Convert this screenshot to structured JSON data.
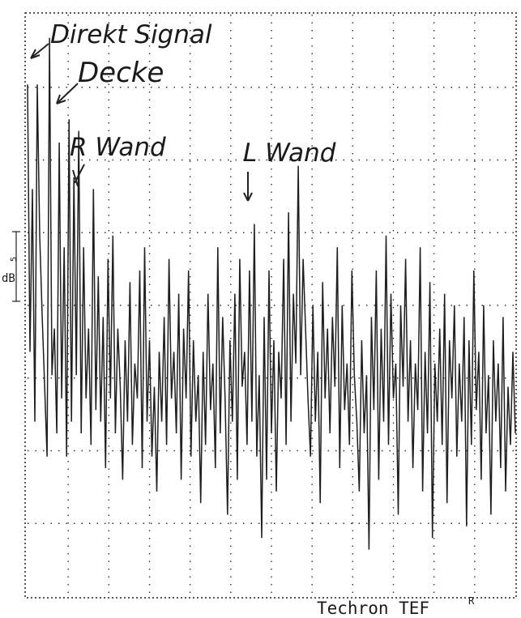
{
  "chart_data": {
    "type": "line",
    "title": "",
    "xlabel": "",
    "ylabel": "dB",
    "grid": true,
    "legend": "none",
    "brand_label": "Techron TEF",
    "brand_superscript": "R",
    "scale_marker": {
      "label": "dB",
      "value_label": "5"
    },
    "xlim": [
      0,
      100
    ],
    "ylim": [
      0,
      100
    ],
    "series": [
      {
        "values": [
          88,
          42,
          70,
          30,
          88,
          62,
          48,
          36,
          24,
          96,
          38,
          46,
          28,
          78,
          34,
          60,
          24,
          82,
          30,
          72,
          38,
          80,
          28,
          60,
          34,
          46,
          26,
          70,
          32,
          55,
          30,
          48,
          22,
          58,
          34,
          62,
          28,
          46,
          36,
          20,
          44,
          30,
          54,
          26,
          40,
          34,
          56,
          22,
          60,
          30,
          44,
          24,
          36,
          18,
          42,
          30,
          48,
          26,
          58,
          34,
          42,
          28,
          52,
          20,
          46,
          34,
          56,
          24,
          44,
          30,
          38,
          16,
          42,
          26,
          52,
          32,
          40,
          22,
          60,
          28,
          48,
          34,
          14,
          44,
          30,
          52,
          20,
          58,
          36,
          42,
          26,
          56,
          30,
          64,
          24,
          38,
          10,
          48,
          20,
          56,
          28,
          44,
          18,
          42,
          34,
          58,
          26,
          66,
          30,
          52,
          40,
          74,
          38,
          58,
          46,
          34,
          24,
          50,
          30,
          42,
          16,
          54,
          34,
          46,
          28,
          48,
          36,
          60,
          22,
          50,
          32,
          40,
          26,
          56,
          38,
          30,
          18,
          44,
          28,
          38,
          8,
          48,
          32,
          56,
          20,
          46,
          30,
          62,
          26,
          52,
          34,
          40,
          14,
          50,
          36,
          58,
          30,
          44,
          22,
          40,
          32,
          60,
          18,
          42,
          28,
          54,
          10,
          40,
          30,
          46,
          26,
          52,
          16,
          44,
          34,
          50,
          24,
          40,
          30,
          48,
          12,
          44,
          26,
          56,
          32,
          42,
          20,
          50,
          28,
          38,
          14,
          44,
          30,
          40,
          22,
          48,
          18,
          36,
          26,
          42,
          28
        ]
      }
    ],
    "annotations": [
      {
        "label": "Direkt Signal",
        "x": 0.5
      },
      {
        "label": "Decke",
        "x": 4.5
      },
      {
        "label": "R Wand",
        "x": 8.5
      },
      {
        "label": "L Wand",
        "x": 46.5
      }
    ]
  }
}
